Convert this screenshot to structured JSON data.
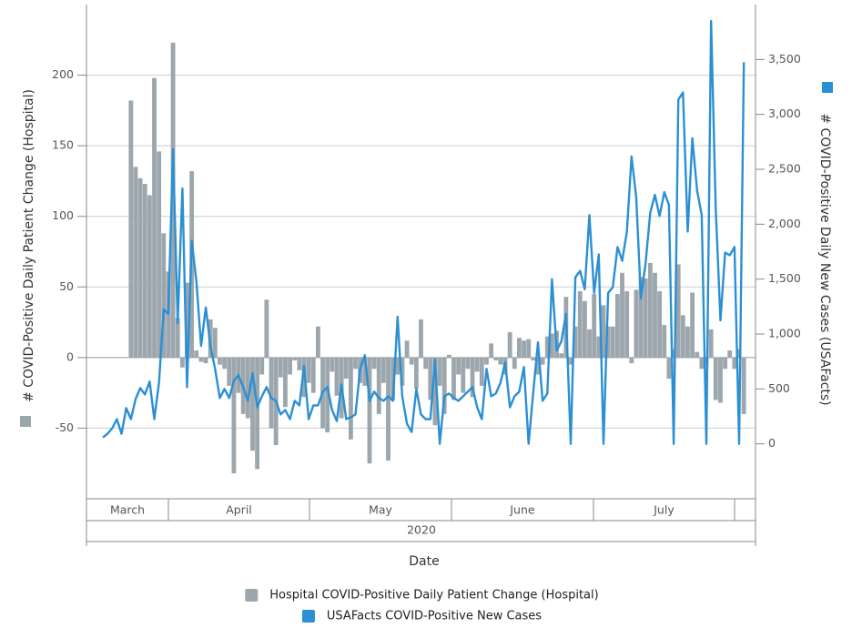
{
  "chart_data": {
    "type": "bar-line",
    "y_label": "# COVID-Positive Daily Patient Change (Hospital)",
    "y2_label": "# COVID-Positive Daily New Cases (USAFacts)",
    "x_label": "Date",
    "x_group_labels": [
      "March",
      "April",
      "May",
      "June",
      "July"
    ],
    "x_super_label": "2020",
    "categories": [
      null,
      null,
      null,
      null,
      null,
      null,
      null,
      null,
      null,
      null,
      null,
      null,
      null,
      null,
      null,
      null,
      null,
      null,
      null,
      null,
      null,
      null,
      null,
      null,
      null,
      null,
      null,
      null,
      null,
      null,
      null,
      null,
      null,
      null,
      null,
      null,
      null,
      null,
      null,
      null,
      null,
      null,
      null,
      null,
      null,
      null,
      null,
      null,
      null,
      null,
      null,
      null,
      null,
      null,
      null,
      null,
      null,
      null,
      null,
      null,
      null,
      null,
      null,
      null,
      null,
      null,
      null,
      null,
      null,
      null,
      null,
      null,
      null,
      null,
      null,
      null,
      null,
      null,
      null,
      null,
      null,
      null,
      null,
      null,
      null,
      null,
      null,
      null,
      null,
      null,
      null,
      null,
      null,
      null,
      null,
      null,
      null,
      null,
      null,
      null,
      null,
      null,
      null,
      null,
      null,
      null,
      null,
      null,
      null,
      null,
      null,
      null,
      null,
      null,
      null,
      null,
      null,
      null,
      null,
      null,
      null,
      null,
      null,
      null,
      null,
      null,
      null,
      null,
      null,
      null,
      null,
      null,
      null,
      null,
      null,
      null,
      null,
      null,
      null,
      null,
      null,
      null,
      null
    ],
    "ylim": [
      -100,
      250
    ],
    "yticks": [
      -50,
      0,
      50,
      100,
      150,
      200
    ],
    "y2lim": [
      -500,
      4000
    ],
    "y2ticks": [
      0,
      500,
      {
        "value": 1000,
        "label": "1,000"
      },
      {
        "value": 1500,
        "label": "1,500"
      },
      {
        "value": 2000,
        "label": "2,000"
      },
      {
        "value": 2500,
        "label": "2,500"
      },
      {
        "value": 3000,
        "label": "3,000"
      },
      {
        "value": 3500,
        "label": "3,500"
      }
    ],
    "grid": true,
    "series": [
      {
        "name": "Hospital COVID-Positive Daily Patient Change (Hospital)",
        "type": "bar",
        "color": "#9ca6ad",
        "values": [
          null,
          null,
          null,
          null,
          null,
          null,
          null,
          null,
          null,
          182,
          135,
          127,
          123,
          115,
          198,
          146,
          88,
          61,
          223,
          28,
          -7,
          53,
          132,
          5,
          -3,
          -4,
          27,
          21,
          -5,
          -8,
          -20,
          -82,
          -25,
          -40,
          -43,
          -66,
          -79,
          -12,
          41,
          -50,
          -62,
          -14,
          -35,
          -12,
          -2,
          -9,
          -28,
          -18,
          -25,
          22,
          -50,
          -53,
          -10,
          -27,
          -43,
          -15,
          -58,
          -8,
          -18,
          -20,
          -75,
          -8,
          -40,
          -18,
          -73,
          -30,
          -12,
          -20,
          12,
          -5,
          -22,
          27,
          -8,
          -30,
          -48,
          -20,
          -40,
          2,
          -30,
          -12,
          -25,
          -8,
          -28,
          -10,
          -20,
          -5,
          10,
          -2,
          -5,
          -12,
          18,
          -8,
          14,
          12,
          13,
          -2,
          -12,
          -5,
          15,
          17,
          19,
          3,
          43,
          -5,
          22,
          47,
          40,
          20,
          45,
          15,
          37,
          22,
          22,
          45,
          60,
          47,
          -4,
          48,
          57,
          56,
          67,
          60,
          47,
          23,
          -15,
          6,
          66,
          30,
          22,
          46,
          4,
          -8,
          -5,
          20,
          -30,
          -32,
          -8,
          5,
          -8,
          6,
          -40,
          null,
          null
        ]
      },
      {
        "name": "USAFacts COVID-Positive New Cases",
        "type": "line",
        "axis": "y2",
        "color": "#2b8fd4",
        "values": [
          null,
          null,
          null,
          58,
          92,
          142,
          225,
          92,
          325,
          225,
          408,
          508,
          450,
          567,
          225,
          558,
          1225,
          1183,
          2683,
          1100,
          2325,
          517,
          1850,
          1475,
          892,
          1242,
          892,
          683,
          417,
          500,
          417,
          575,
          625,
          517,
          392,
          642,
          333,
          433,
          517,
          417,
          392,
          267,
          308,
          225,
          392,
          350,
          708,
          225,
          350,
          350,
          475,
          517,
          308,
          208,
          542,
          225,
          242,
          267,
          683,
          808,
          392,
          475,
          417,
          392,
          433,
          392,
          1158,
          433,
          183,
          108,
          500,
          267,
          225,
          225,
          767,
          0,
          433,
          458,
          417,
          392,
          433,
          475,
          517,
          333,
          225,
          683,
          433,
          458,
          558,
          742,
          333,
          433,
          475,
          700,
          0,
          475,
          925,
          392,
          458,
          1500,
          850,
          933,
          1183,
          0,
          1517,
          1575,
          1408,
          2083,
          1375,
          1725,
          0,
          1375,
          1425,
          1792,
          1667,
          1933,
          2617,
          2250,
          1325,
          1642,
          2108,
          2267,
          2075,
          2292,
          2175,
          0,
          3133,
          3200,
          1933,
          2783,
          2308,
          2083,
          0,
          3850,
          2142,
          1125,
          1742,
          1717,
          1792,
          0,
          3475,
          null,
          null
        ]
      }
    ]
  }
}
